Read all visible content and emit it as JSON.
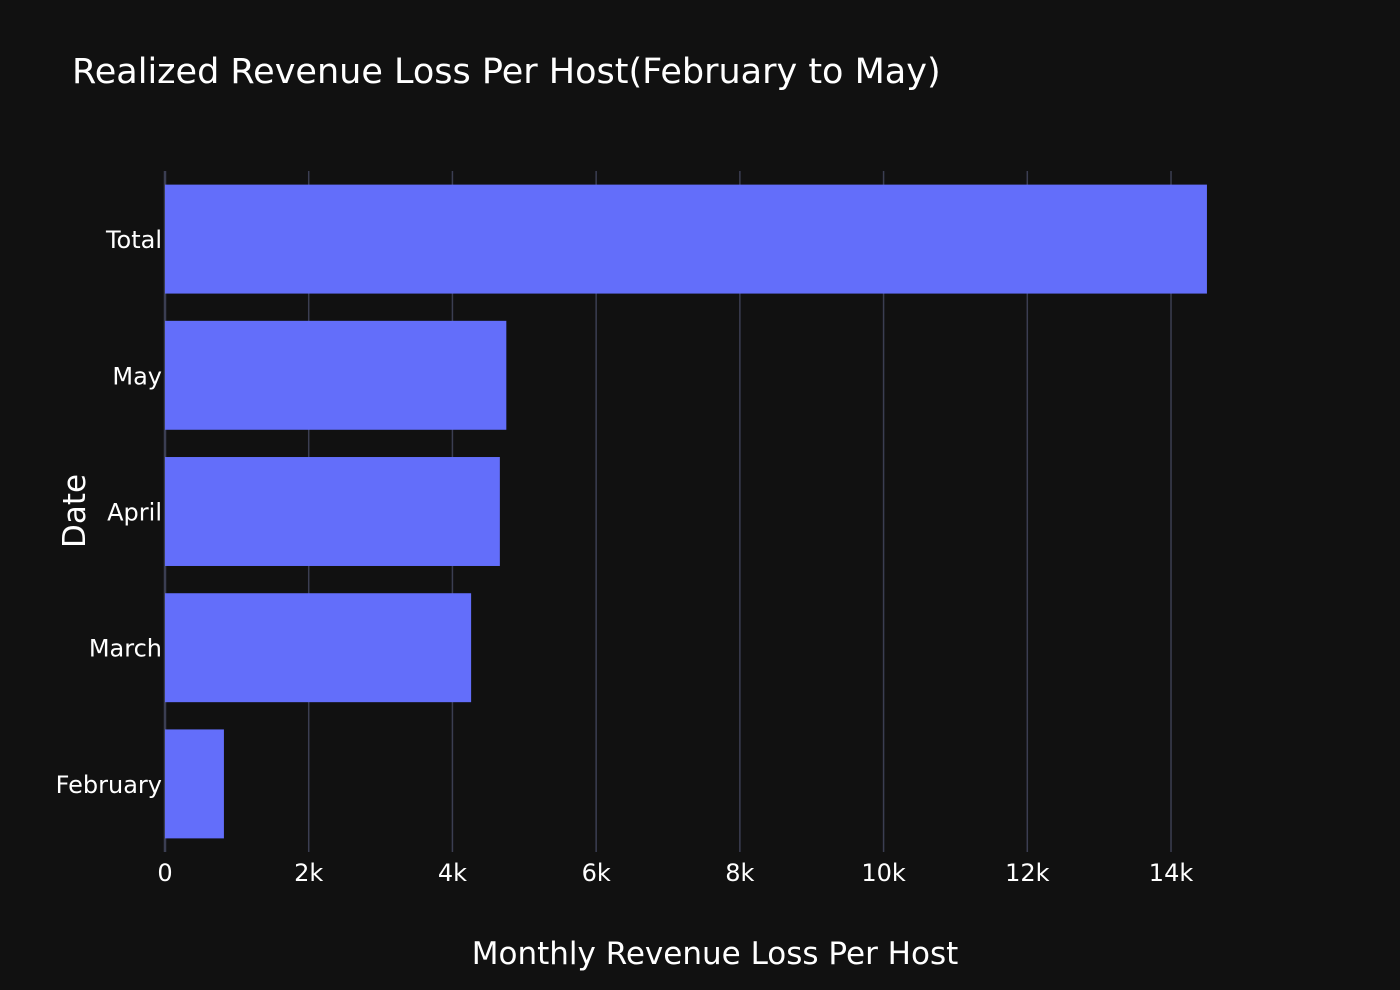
{
  "chart_data": {
    "type": "bar",
    "orientation": "horizontal",
    "title": "Realized Revenue Loss Per Host(February to May)",
    "xlabel": "Monthly Revenue Loss Per Host",
    "ylabel": "Date",
    "categories": [
      "February",
      "March",
      "April",
      "May",
      "Total"
    ],
    "values": [
      820,
      4260,
      4660,
      4750,
      14500
    ],
    "xlim": [
      0,
      14960
    ],
    "xticks": [
      0,
      2000,
      4000,
      6000,
      8000,
      10000,
      12000,
      14000
    ],
    "xtick_labels": [
      "0",
      "2k",
      "4k",
      "6k",
      "8k",
      "10k",
      "12k",
      "14k"
    ],
    "grid": "vertical",
    "legend": "none",
    "colors": {
      "background": "#111111",
      "bar": "#636efa",
      "grid": "#3b3e52",
      "text": "#ffffff"
    }
  }
}
